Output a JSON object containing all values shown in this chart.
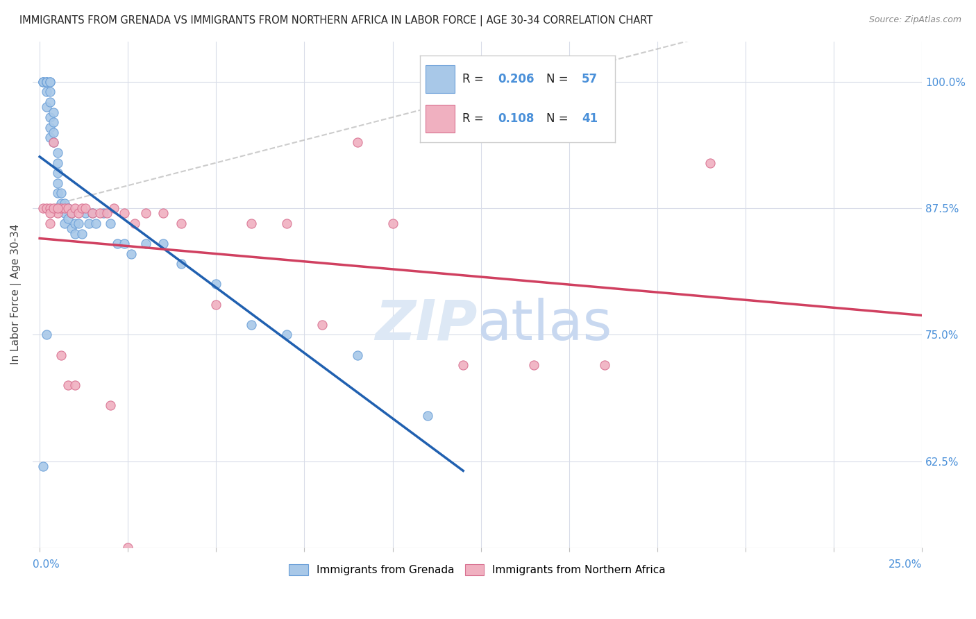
{
  "title": "IMMIGRANTS FROM GRENADA VS IMMIGRANTS FROM NORTHERN AFRICA IN LABOR FORCE | AGE 30-34 CORRELATION CHART",
  "source": "Source: ZipAtlas.com",
  "ylabel": "In Labor Force | Age 30-34",
  "ytick_labels": [
    "100.0%",
    "87.5%",
    "75.0%",
    "62.5%"
  ],
  "ytick_vals": [
    1.0,
    0.875,
    0.75,
    0.625
  ],
  "xlim": [
    -0.002,
    0.25
  ],
  "ylim": [
    0.54,
    1.04
  ],
  "xtick_label_left": "0.0%",
  "xtick_label_right": "25.0%",
  "color_grenada_fill": "#a8c8e8",
  "color_grenada_edge": "#6a9fd8",
  "color_grenada_line": "#2060b0",
  "color_n_africa_fill": "#f0b0c0",
  "color_n_africa_edge": "#d87090",
  "color_n_africa_line": "#d04060",
  "color_diagonal": "#aaaaaa",
  "color_grid": "#d8dce8",
  "color_ytick": "#4a90d9",
  "watermark_color": "#dde8f5",
  "legend_r1_val": "0.206",
  "legend_n1_val": "57",
  "legend_r2_val": "0.108",
  "legend_n2_val": "41",
  "grenada_x": [
    0.001,
    0.001,
    0.001,
    0.002,
    0.002,
    0.002,
    0.002,
    0.002,
    0.003,
    0.003,
    0.003,
    0.003,
    0.003,
    0.003,
    0.003,
    0.004,
    0.004,
    0.004,
    0.004,
    0.005,
    0.005,
    0.005,
    0.005,
    0.005,
    0.006,
    0.006,
    0.006,
    0.007,
    0.007,
    0.007,
    0.008,
    0.008,
    0.009,
    0.009,
    0.01,
    0.01,
    0.011,
    0.012,
    0.013,
    0.014,
    0.015,
    0.016,
    0.018,
    0.02,
    0.022,
    0.024,
    0.026,
    0.03,
    0.035,
    0.04,
    0.05,
    0.06,
    0.07,
    0.09,
    0.11,
    0.002,
    0.001
  ],
  "grenada_y": [
    1.0,
    1.0,
    1.0,
    1.0,
    1.0,
    1.0,
    0.99,
    0.975,
    1.0,
    1.0,
    0.99,
    0.98,
    0.965,
    0.955,
    0.945,
    0.97,
    0.96,
    0.95,
    0.94,
    0.93,
    0.92,
    0.91,
    0.9,
    0.89,
    0.89,
    0.88,
    0.875,
    0.88,
    0.87,
    0.86,
    0.875,
    0.865,
    0.87,
    0.855,
    0.86,
    0.85,
    0.86,
    0.85,
    0.87,
    0.86,
    0.87,
    0.86,
    0.87,
    0.86,
    0.84,
    0.84,
    0.83,
    0.84,
    0.84,
    0.82,
    0.8,
    0.76,
    0.75,
    0.73,
    0.67,
    0.75,
    0.62
  ],
  "n_africa_x": [
    0.001,
    0.002,
    0.003,
    0.004,
    0.005,
    0.006,
    0.007,
    0.008,
    0.009,
    0.01,
    0.011,
    0.012,
    0.013,
    0.015,
    0.017,
    0.019,
    0.021,
    0.024,
    0.027,
    0.03,
    0.035,
    0.04,
    0.05,
    0.06,
    0.07,
    0.08,
    0.09,
    0.1,
    0.12,
    0.14,
    0.16,
    0.19,
    0.003,
    0.003,
    0.004,
    0.005,
    0.006,
    0.008,
    0.01,
    0.02,
    0.025
  ],
  "n_africa_y": [
    0.875,
    0.875,
    0.875,
    0.94,
    0.87,
    0.875,
    0.875,
    0.875,
    0.87,
    0.875,
    0.87,
    0.875,
    0.875,
    0.87,
    0.87,
    0.87,
    0.875,
    0.87,
    0.86,
    0.87,
    0.87,
    0.86,
    0.78,
    0.86,
    0.86,
    0.76,
    0.94,
    0.86,
    0.72,
    0.72,
    0.72,
    0.92,
    0.86,
    0.87,
    0.875,
    0.875,
    0.73,
    0.7,
    0.7,
    0.68,
    0.54
  ]
}
